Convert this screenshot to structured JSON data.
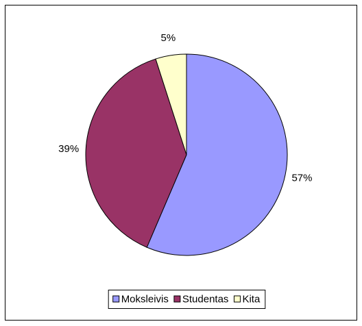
{
  "chart_data": {
    "type": "pie",
    "categories": [
      "Moksleivis",
      "Studentas",
      "Kita"
    ],
    "values": [
      57,
      39,
      5
    ],
    "value_labels": [
      "57%",
      "39%",
      "5%"
    ],
    "colors": [
      "#9999ff",
      "#993366",
      "#ffffcc"
    ],
    "legend": "bottom"
  }
}
